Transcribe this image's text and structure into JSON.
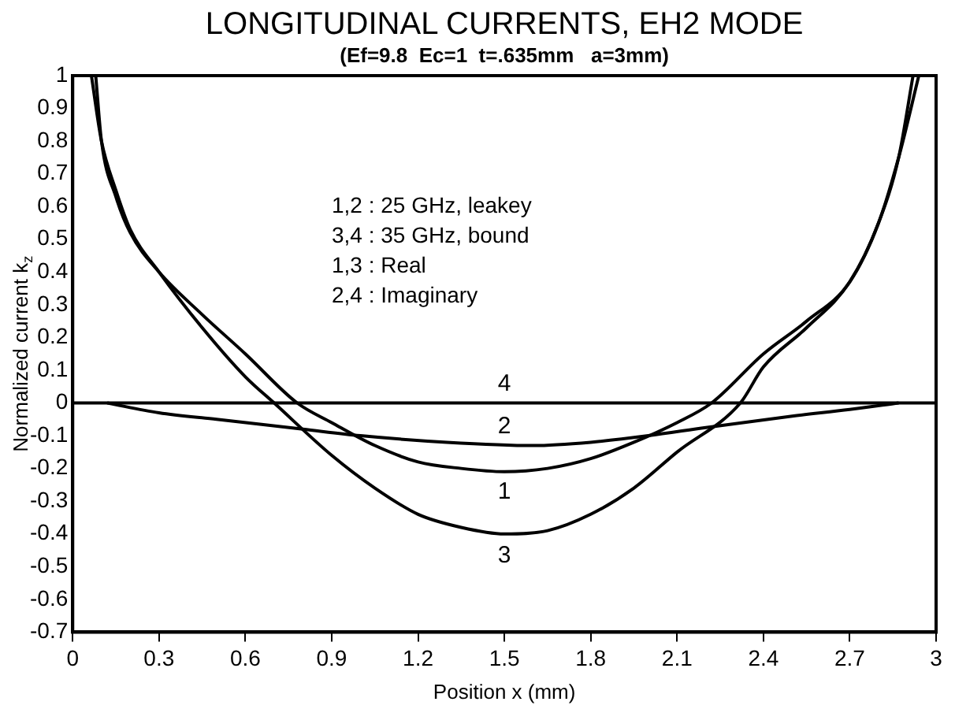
{
  "chart_data": {
    "type": "line",
    "title": "LONGITUDINAL CURRENTS, EH2 MODE",
    "subtitle": "(Ef=9.8  Ec=1  t=.635mm   a=3mm)",
    "xlabel": "Position x (mm)",
    "ylabel": "Normalized current k$_{z}$",
    "xlim": [
      0,
      3
    ],
    "ylim": [
      -0.7,
      1
    ],
    "xticks": [
      0,
      0.3,
      0.6,
      0.9,
      1.2,
      1.5,
      1.8,
      2.1,
      2.4,
      2.7,
      3
    ],
    "yticks": [
      -0.7,
      -0.6,
      -0.5,
      -0.4,
      -0.3,
      -0.2,
      -0.1,
      0,
      0.1,
      0.2,
      0.3,
      0.4,
      0.5,
      0.6,
      0.7,
      0.8,
      0.9,
      1
    ],
    "grid": false,
    "legend": false,
    "marker": "none",
    "line_style": "solid",
    "series": [
      {
        "name": "1",
        "color": "#000000",
        "x": [
          0.08,
          0.1,
          0.15,
          0.2,
          0.3,
          0.45,
          0.6,
          0.78,
          0.9,
          1.05,
          1.2,
          1.35,
          1.5,
          1.65,
          1.8,
          1.95,
          2.1,
          2.22,
          2.4,
          2.55,
          2.7,
          2.8,
          2.87,
          2.92
        ],
        "values": [
          1,
          0.8,
          0.63,
          0.52,
          0.4,
          0.27,
          0.15,
          0,
          -0.06,
          -0.13,
          -0.18,
          -0.2,
          -0.21,
          -0.2,
          -0.17,
          -0.12,
          -0.06,
          0,
          0.15,
          0.25,
          0.37,
          0.55,
          0.75,
          1
        ]
      },
      {
        "name": "2",
        "color": "#000000",
        "x": [
          0.12,
          0.3,
          0.5,
          0.8,
          1.0,
          1.3,
          1.6,
          1.8,
          2.0,
          2.2,
          2.5,
          2.7,
          2.87
        ],
        "values": [
          0,
          -0.03,
          -0.05,
          -0.08,
          -0.1,
          -0.12,
          -0.13,
          -0.12,
          -0.1,
          -0.075,
          -0.04,
          -0.02,
          0
        ]
      },
      {
        "name": "3",
        "color": "#000000",
        "x": [
          0.065,
          0.1,
          0.15,
          0.2,
          0.3,
          0.45,
          0.6,
          0.7,
          0.9,
          1.05,
          1.2,
          1.35,
          1.5,
          1.65,
          1.8,
          1.95,
          2.1,
          2.32,
          2.4,
          2.55,
          2.7,
          2.8,
          2.87,
          2.94
        ],
        "values": [
          1,
          0.8,
          0.65,
          0.53,
          0.4,
          0.23,
          0.08,
          0,
          -0.16,
          -0.26,
          -0.34,
          -0.38,
          -0.4,
          -0.39,
          -0.34,
          -0.26,
          -0.15,
          0,
          0.11,
          0.23,
          0.37,
          0.55,
          0.75,
          1
        ]
      },
      {
        "name": "4",
        "color": "#000000",
        "x": [
          0,
          3
        ],
        "values": [
          0,
          0
        ]
      }
    ],
    "annotations": [
      "1,2 : 25 GHz, leakey",
      "3,4 : 35 GHz, bound",
      "1,3 : Real",
      "2,4 : Imaginary"
    ]
  }
}
